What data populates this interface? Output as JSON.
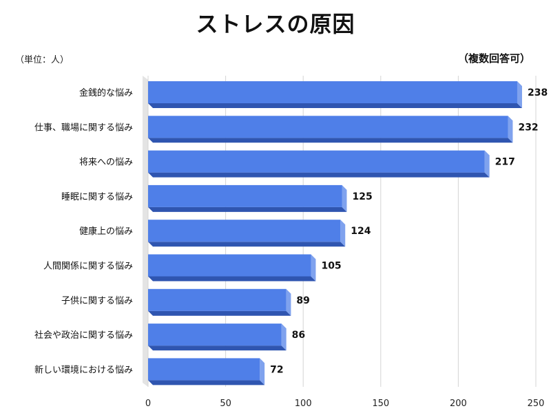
{
  "header": {
    "title": "ストレスの原因",
    "unit_label": "（単位：人）",
    "note": "（複数回答可）"
  },
  "chart_data": {
    "type": "bar",
    "orientation": "horizontal",
    "categories": [
      "金銭的な悩み",
      "仕事、職場に関する悩み",
      "将来への悩み",
      "睡眠に関する悩み",
      "健康上の悩み",
      "人間関係に関する悩み",
      "子供に関する悩み",
      "社会や政治に関する悩み",
      "新しい環境における悩み"
    ],
    "values": [
      238,
      232,
      217,
      125,
      124,
      105,
      89,
      86,
      72
    ],
    "x_ticks": [
      "0",
      "50",
      "100",
      "150",
      "200",
      "250"
    ],
    "xlim": [
      0,
      250
    ],
    "grid": true,
    "bar_color": "#4f7fe8",
    "bar_shadow_color": "#2f55b0"
  }
}
